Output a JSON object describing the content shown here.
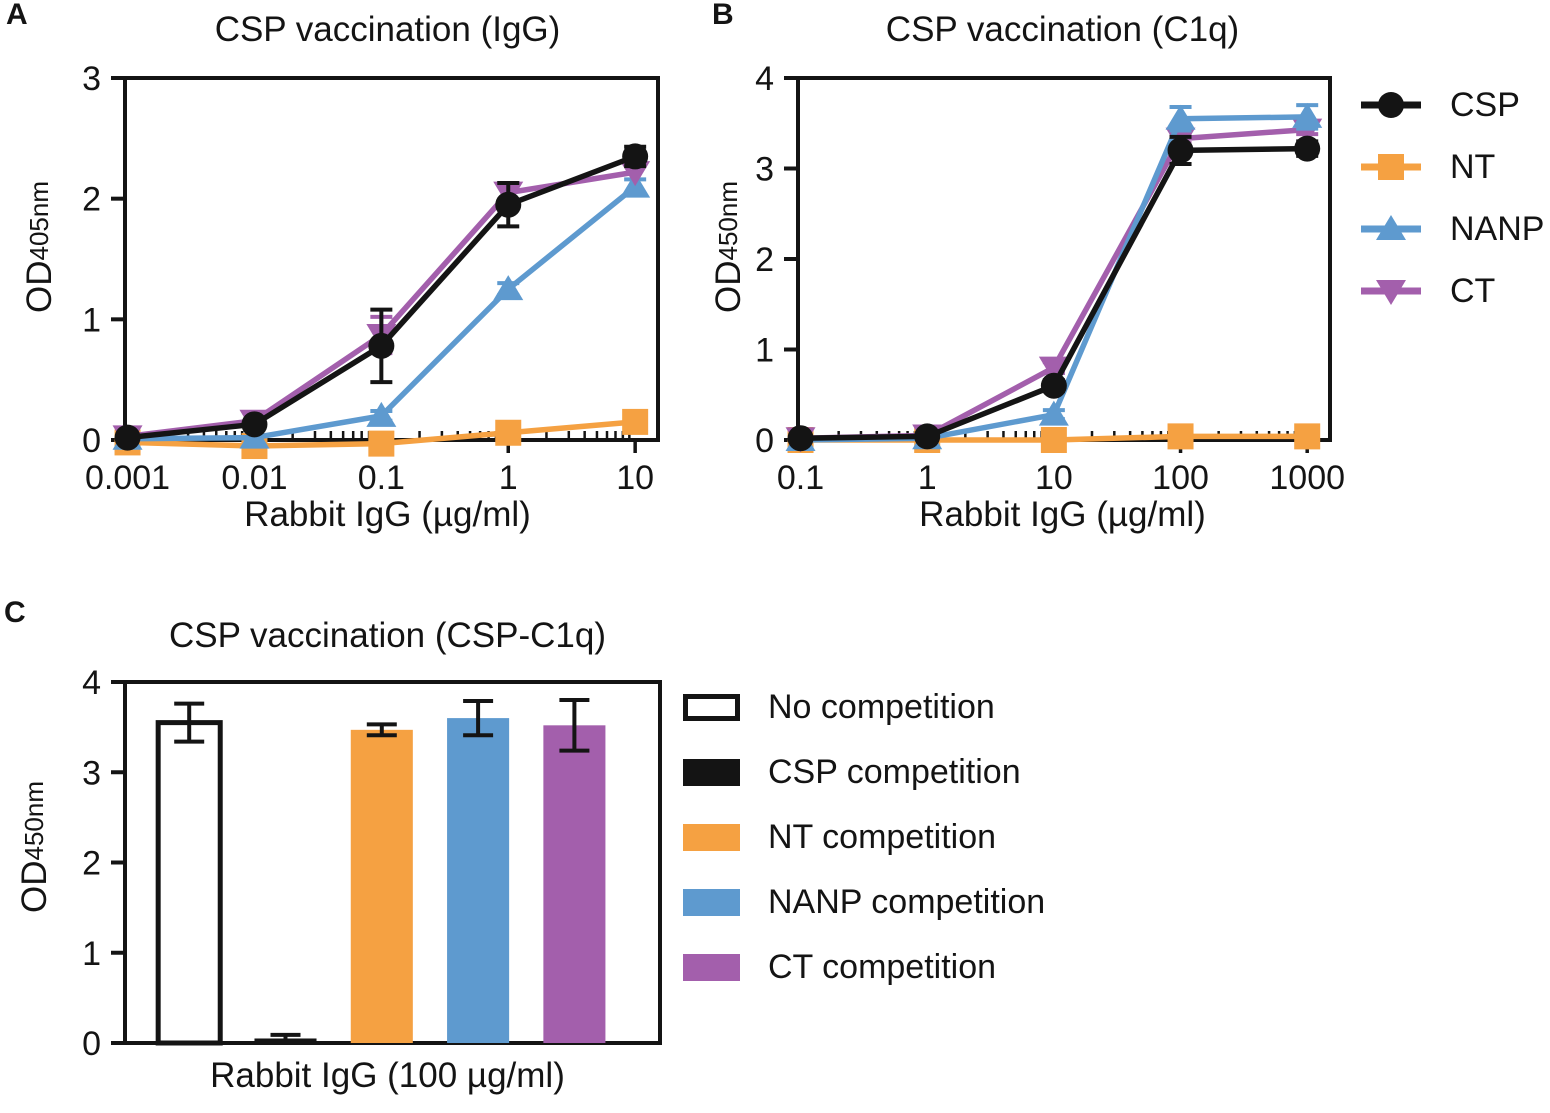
{
  "colors": {
    "black": "#141414",
    "orange": "#F5A142",
    "blue": "#5E9ACF",
    "purple": "#A35FAC",
    "white": "#ffffff"
  },
  "panels": {
    "A": {
      "letter": "A",
      "ylabel_main": "OD",
      "ylabel_sub": "405nm"
    },
    "B": {
      "letter": "B",
      "ylabel_main": "OD",
      "ylabel_sub": "450nm"
    },
    "C": {
      "letter": "C",
      "ylabel_main": "OD",
      "ylabel_sub": "450nm"
    }
  },
  "legend_ab": [
    {
      "label": "CSP",
      "marker": "circle",
      "color": "#141414"
    },
    {
      "label": "NT",
      "marker": "square",
      "color": "#F5A142"
    },
    {
      "label": "NANP",
      "marker": "triangle-up",
      "color": "#5E9ACF"
    },
    {
      "label": "CT",
      "marker": "triangle-down",
      "color": "#A35FAC"
    }
  ],
  "legend_c": [
    {
      "label": "No competition",
      "fill": "#ffffff",
      "border": "#141414"
    },
    {
      "label": "CSP competition",
      "fill": "#141414",
      "border": ""
    },
    {
      "label": "NT competition",
      "fill": "#F5A142",
      "border": ""
    },
    {
      "label": "NANP competition",
      "fill": "#5E9ACF",
      "border": ""
    },
    {
      "label": "CT competition",
      "fill": "#A35FAC",
      "border": ""
    }
  ],
  "chart_data": [
    {
      "id": "A",
      "type": "line",
      "title": "CSP vaccination (IgG)",
      "xlabel": "Rabbit IgG (µg/ml)",
      "ylabel": "OD405nm",
      "x_scale": "log",
      "x": [
        0.001,
        0.01,
        0.1,
        1,
        10
      ],
      "x_tick_labels": [
        "0.001",
        "0.01",
        "0.1",
        "1",
        "10"
      ],
      "ylim": [
        0,
        3
      ],
      "yticks": [
        0,
        1,
        2,
        3
      ],
      "grid": false,
      "legend_position": "right-of-panel-B",
      "z_order": [
        1,
        2,
        3,
        0
      ],
      "series": [
        {
          "name": "CSP",
          "marker": "circle",
          "color": "#141414",
          "values": [
            0.02,
            0.13,
            0.78,
            1.95,
            2.35
          ],
          "errors": [
            0.02,
            0.04,
            0.3,
            0.18,
            0.08
          ]
        },
        {
          "name": "NT",
          "marker": "square",
          "color": "#F5A142",
          "values": [
            -0.02,
            -0.05,
            -0.03,
            0.06,
            0.15
          ],
          "errors": [
            0,
            0,
            0,
            0,
            0
          ]
        },
        {
          "name": "NANP",
          "marker": "triangle-up",
          "color": "#5E9ACF",
          "values": [
            0.01,
            0.02,
            0.2,
            1.25,
            2.1
          ],
          "errors": [
            0,
            0,
            0.04,
            0.05,
            0.06
          ]
        },
        {
          "name": "CT",
          "marker": "triangle-down",
          "color": "#A35FAC",
          "values": [
            0.03,
            0.16,
            0.87,
            2.05,
            2.22
          ],
          "errors": [
            0,
            0,
            0.15,
            0.08,
            0
          ]
        }
      ]
    },
    {
      "id": "B",
      "type": "line",
      "title": "CSP vaccination (C1q)",
      "xlabel": "Rabbit IgG (µg/ml)",
      "ylabel": "OD450nm",
      "x_scale": "log",
      "x": [
        0.1,
        1,
        10,
        100,
        1000
      ],
      "x_tick_labels": [
        "0.1",
        "1",
        "10",
        "100",
        "1000"
      ],
      "ylim": [
        0,
        4
      ],
      "yticks": [
        0,
        1,
        2,
        3,
        4
      ],
      "grid": false,
      "z_order": [
        1,
        3,
        2,
        0
      ],
      "series": [
        {
          "name": "CSP",
          "marker": "circle",
          "color": "#141414",
          "values": [
            0.02,
            0.04,
            0.6,
            3.2,
            3.22
          ],
          "errors": [
            0,
            0,
            0.06,
            0.15,
            0.08
          ]
        },
        {
          "name": "NT",
          "marker": "square",
          "color": "#F5A142",
          "values": [
            0.0,
            0.0,
            0.0,
            0.04,
            0.04
          ],
          "errors": [
            0,
            0,
            0,
            0,
            0
          ]
        },
        {
          "name": "NANP",
          "marker": "triangle-up",
          "color": "#5E9ACF",
          "values": [
            0.0,
            0.02,
            0.28,
            3.55,
            3.57
          ],
          "errors": [
            0,
            0,
            0.05,
            0.13,
            0.13
          ]
        },
        {
          "name": "CT",
          "marker": "triangle-down",
          "color": "#A35FAC",
          "values": [
            0.02,
            0.05,
            0.8,
            3.33,
            3.43
          ],
          "errors": [
            0,
            0,
            0.06,
            0.05,
            0.05
          ]
        }
      ]
    },
    {
      "id": "C",
      "type": "bar",
      "title": "CSP vaccination (CSP-C1q)",
      "xlabel": "Rabbit IgG (100 µg/ml)",
      "ylabel": "OD450nm",
      "ylim": [
        0,
        4
      ],
      "yticks": [
        0,
        1,
        2,
        3,
        4
      ],
      "grid": false,
      "legend_position": "right",
      "categories": [
        "No competition",
        "CSP competition",
        "NT competition",
        "NANP competition",
        "CT competition"
      ],
      "values": [
        3.55,
        0.05,
        3.47,
        3.6,
        3.52
      ],
      "errors": [
        0.21,
        0.04,
        0.06,
        0.19,
        0.28
      ],
      "bar_styles": [
        {
          "fill": "#ffffff",
          "stroke": "#141414"
        },
        {
          "fill": "#141414",
          "stroke": ""
        },
        {
          "fill": "#F5A142",
          "stroke": ""
        },
        {
          "fill": "#5E9ACF",
          "stroke": ""
        },
        {
          "fill": "#A35FAC",
          "stroke": ""
        }
      ]
    }
  ]
}
